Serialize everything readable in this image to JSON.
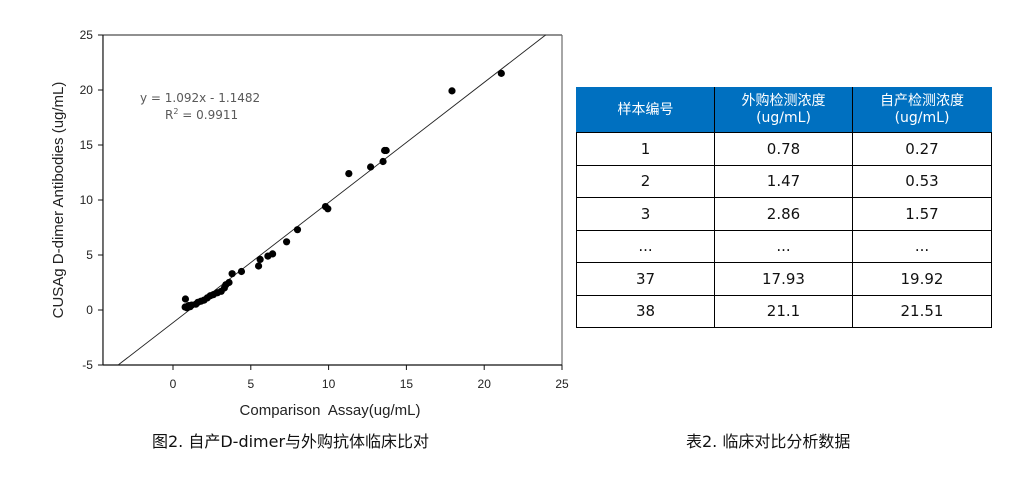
{
  "chart_data": {
    "type": "scatter",
    "title": "",
    "xlabel": "Comparison  Assay(ug/mL)",
    "ylabel": "CUSAg D-dimer Antibodies (ug/mL)",
    "xlim": [
      -4.5,
      25
    ],
    "ylim": [
      -5,
      25
    ],
    "xticks": [
      0,
      5,
      10,
      15,
      20,
      25
    ],
    "yticks": [
      -5,
      0,
      5,
      10,
      15,
      20,
      25
    ],
    "grid": false,
    "legend": null,
    "annotations": [
      {
        "text": "y = 1.092x - 1.1482",
        "x": 5.3,
        "y": 19.2
      },
      {
        "text": "R² = 0.9911",
        "x": 5.3,
        "y": 17.6
      }
    ],
    "regression": {
      "slope": 1.092,
      "intercept": -1.1482,
      "r2": 0.9911
    },
    "series": [
      {
        "name": "samples",
        "points": [
          [
            0.78,
            0.27
          ],
          [
            0.9,
            0.2
          ],
          [
            1.0,
            0.4
          ],
          [
            0.8,
            1.0
          ],
          [
            1.1,
            0.3
          ],
          [
            1.2,
            0.45
          ],
          [
            1.47,
            0.53
          ],
          [
            1.6,
            0.7
          ],
          [
            1.8,
            0.8
          ],
          [
            2.0,
            0.9
          ],
          [
            2.2,
            1.1
          ],
          [
            2.4,
            1.3
          ],
          [
            2.6,
            1.4
          ],
          [
            2.86,
            1.57
          ],
          [
            3.1,
            1.7
          ],
          [
            3.3,
            2.0
          ],
          [
            3.4,
            2.3
          ],
          [
            3.6,
            2.5
          ],
          [
            3.8,
            3.3
          ],
          [
            4.4,
            3.5
          ],
          [
            5.5,
            4.0
          ],
          [
            5.6,
            4.6
          ],
          [
            6.1,
            4.9
          ],
          [
            6.4,
            5.1
          ],
          [
            7.3,
            6.2
          ],
          [
            8.0,
            7.3
          ],
          [
            9.8,
            9.4
          ],
          [
            9.95,
            9.2
          ],
          [
            11.3,
            12.4
          ],
          [
            12.7,
            13.0
          ],
          [
            13.5,
            13.5
          ],
          [
            13.6,
            14.5
          ],
          [
            13.7,
            14.5
          ],
          [
            17.93,
            19.92
          ],
          [
            21.1,
            21.51
          ]
        ]
      }
    ]
  },
  "figure": {
    "caption": "图2. 自产D-dimer与外购抗体临床比对"
  },
  "table": {
    "caption": "表2. 临床对比分析数据",
    "header_color": "#0070C0",
    "headers": [
      {
        "line1": "样本编号",
        "line2": ""
      },
      {
        "line1": "外购检测浓度",
        "line2": "(ug/mL)"
      },
      {
        "line1": "自产检测浓度",
        "line2": "(ug/mL)"
      }
    ],
    "rows": [
      [
        "1",
        "0.78",
        "0.27"
      ],
      [
        "2",
        "1.47",
        "0.53"
      ],
      [
        "3",
        "2.86",
        "1.57"
      ],
      [
        "...",
        "...",
        "..."
      ],
      [
        "37",
        "17.93",
        "19.92"
      ],
      [
        "38",
        "21.1",
        "21.51"
      ]
    ]
  }
}
